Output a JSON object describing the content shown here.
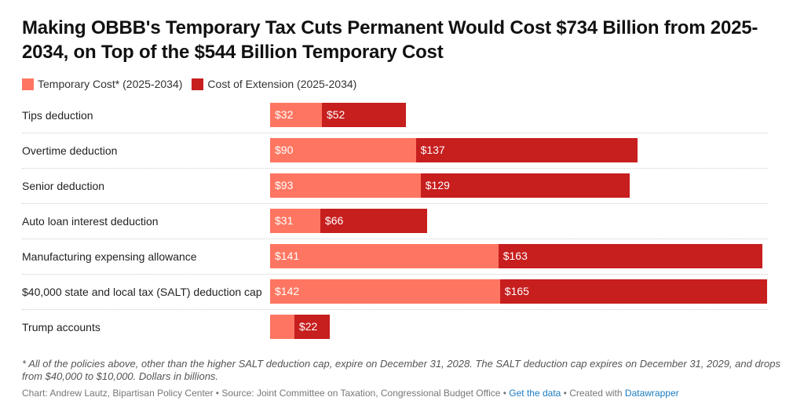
{
  "chart_data": {
    "type": "bar",
    "orientation": "horizontal",
    "stacked": true,
    "title": "Making OBBB's Temporary Tax Cuts Permanent Would Cost $734 Billion from 2025-2034, on Top of the $544 Billion Temporary Cost",
    "categories": [
      "Tips deduction",
      "Overtime deduction",
      "Senior deduction",
      "Auto loan interest deduction",
      "Manufacturing expensing allowance",
      "$40,000 state and local tax (SALT) deduction cap",
      "Trump accounts"
    ],
    "series": [
      {
        "name": "Temporary Cost* (2025-2034)",
        "color": "#fe7661",
        "values": [
          32,
          90,
          93,
          31,
          141,
          142,
          15
        ],
        "labels": [
          "$32",
          "$90",
          "$93",
          "$31",
          "$141",
          "$142",
          ""
        ]
      },
      {
        "name": "Cost of Extension (2025-2034)",
        "color": "#c71e1e",
        "values": [
          52,
          137,
          129,
          66,
          163,
          165,
          22
        ],
        "labels": [
          "$52",
          "$137",
          "$129",
          "$66",
          "$163",
          "$165",
          "$22"
        ]
      }
    ],
    "xlim": [
      0,
      307
    ],
    "unit": "billions of dollars"
  },
  "note": "* All of the policies above, other than the higher SALT deduction cap, expire on December 31, 2028. The SALT deduction cap expires on December 31, 2029, and drops from $40,000 to $10,000. Dollars in billions.",
  "footer": {
    "source": "Chart: Andrew Lautz, Bipartisan Policy Center • Source: Joint Committee on Taxation, Congressional Budget Office • ",
    "get_data": "Get the data",
    "created": " • Created with ",
    "datawrapper": "Datawrapper"
  }
}
